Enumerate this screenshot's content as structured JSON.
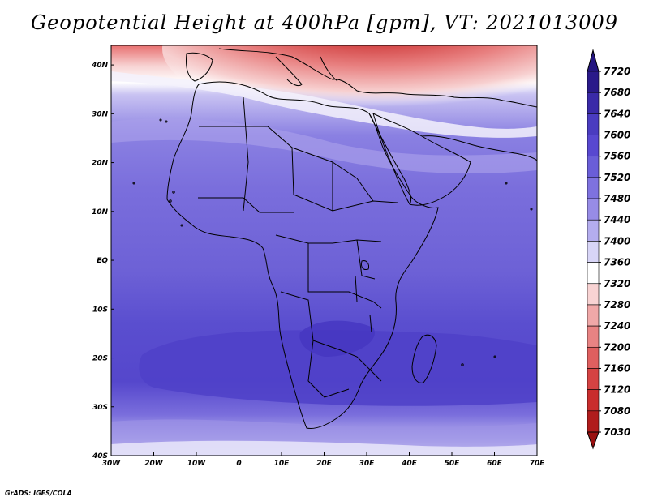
{
  "title": "Geopotential Height at 400hPa [gpm], VT: 2021013009",
  "credit": "GrADS: IGES/COLA",
  "map": {
    "lon_labels": [
      "30W",
      "20W",
      "10W",
      "0",
      "10E",
      "20E",
      "30E",
      "40E",
      "50E",
      "60E",
      "70E"
    ],
    "lon_values": [
      -30,
      -20,
      -10,
      0,
      10,
      20,
      30,
      40,
      50,
      60,
      70
    ],
    "lat_labels": [
      "40N",
      "30N",
      "20N",
      "10N",
      "EQ",
      "10S",
      "20S",
      "30S",
      "40S"
    ],
    "lat_values": [
      40,
      30,
      20,
      10,
      0,
      -10,
      -20,
      -30,
      -40
    ],
    "lon_range": [
      -30,
      70
    ],
    "lat_range": [
      -40,
      44
    ]
  },
  "colorbar": {
    "labels": [
      "7720",
      "7680",
      "7640",
      "7600",
      "7560",
      "7520",
      "7480",
      "7440",
      "7400",
      "7360",
      "7320",
      "7280",
      "7240",
      "7200",
      "7160",
      "7120",
      "7080",
      "7030"
    ],
    "colors": [
      "#2a1a8a",
      "#3a2aa8",
      "#4a3cc0",
      "#5848d0",
      "#6a5ed8",
      "#7e72df",
      "#978ce6",
      "#b4adee",
      "#d8d5f7",
      "#ffffff",
      "#f8d3d3",
      "#f0a8a8",
      "#e88383",
      "#df5f5f",
      "#d54343",
      "#c92d2d",
      "#b01c1c"
    ],
    "over_color": "#241680",
    "under_color": "#991010"
  }
}
